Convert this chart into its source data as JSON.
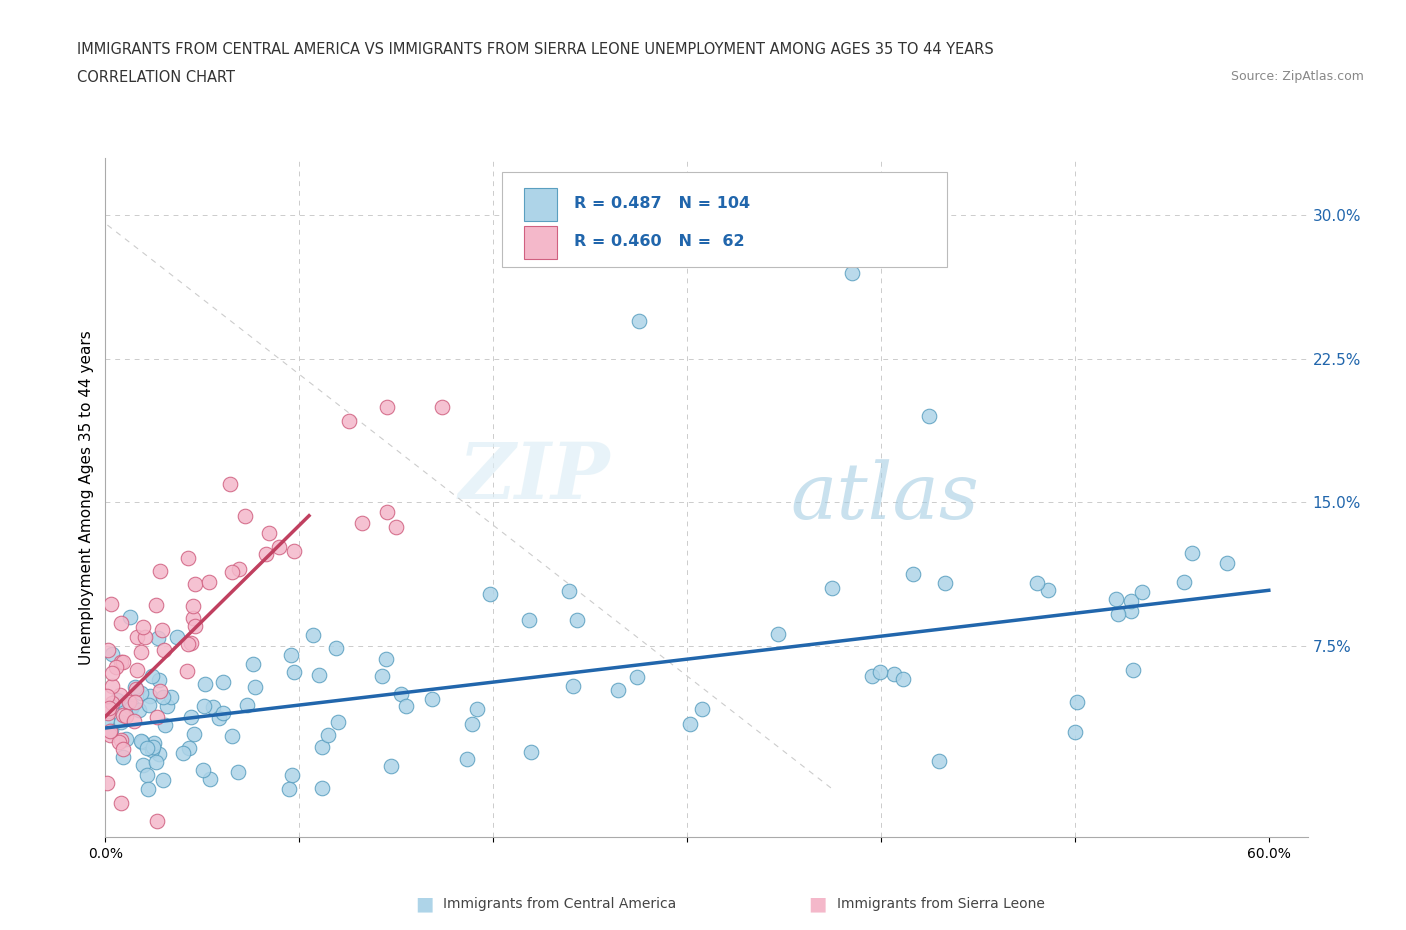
{
  "title_line1": "IMMIGRANTS FROM CENTRAL AMERICA VS IMMIGRANTS FROM SIERRA LEONE UNEMPLOYMENT AMONG AGES 35 TO 44 YEARS",
  "title_line2": "CORRELATION CHART",
  "source": "Source: ZipAtlas.com",
  "ylabel": "Unemployment Among Ages 35 to 44 years",
  "xlim": [
    0.0,
    0.62
  ],
  "ylim": [
    -0.025,
    0.33
  ],
  "r_central_america": 0.487,
  "n_central_america": 104,
  "r_sierra_leone": 0.46,
  "n_sierra_leone": 62,
  "color_central_america": "#aed4e8",
  "color_sierra_leone": "#f4b8ca",
  "edge_color_central_america": "#5a9fc0",
  "edge_color_sierra_leone": "#d06080",
  "trend_color_central_america": "#2166ac",
  "trend_color_sierra_leone": "#c04060",
  "legend_label_1": "Immigrants from Central America",
  "legend_label_2": "Immigrants from Sierra Leone",
  "watermark_zip": "ZIP",
  "watermark_atlas": "atlas",
  "background_color": "#ffffff",
  "grid_color": "#cccccc",
  "ytick_color": "#2166ac"
}
